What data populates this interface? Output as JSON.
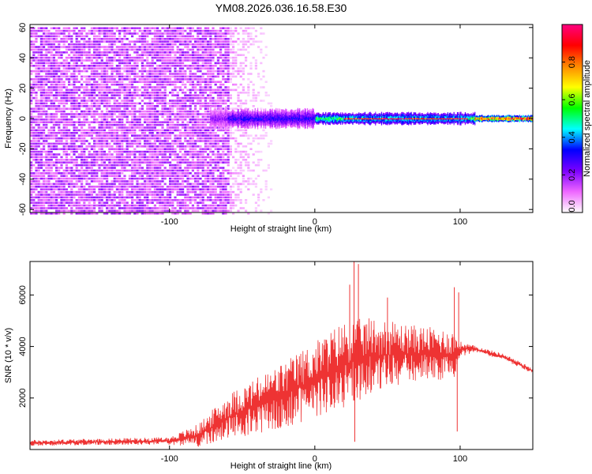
{
  "title": "YM08.2026.036.16.58.E30",
  "chart_data": [
    {
      "type": "heatmap",
      "xlabel": "Height of straight line (km)",
      "ylabel": "Frequency (Hz)",
      "xlim": [
        -196,
        150
      ],
      "ylim": [
        -62,
        62
      ],
      "xticks": [
        -100,
        0,
        100
      ],
      "yticks": [
        -60,
        -40,
        -20,
        0,
        20,
        40,
        60
      ],
      "colorbar": {
        "label": "Normalized spectral amplitude",
        "range": [
          0,
          1
        ],
        "ticks": [
          "0.0",
          "0.2",
          "0.4",
          "0.6",
          "0.8"
        ],
        "colors": [
          "#ffffff",
          "#ee66ff",
          "#7a00ff",
          "#0000ff",
          "#00ffff",
          "#00ff00",
          "#ffff00",
          "#ff8800",
          "#ff0000",
          "#ff0080"
        ]
      },
      "bands": [
        {
          "x": [
            -196,
            -60
          ],
          "freq_halfwidth": 62,
          "amplitude": 0.1,
          "desc": "broadband noise"
        },
        {
          "x": [
            -60,
            -30
          ],
          "freq_halfwidth": 62,
          "amplitude": 0.03
        },
        {
          "x": [
            -72,
            -60
          ],
          "freq_halfwidth": 6,
          "amplitude": 0.2
        },
        {
          "x": [
            -60,
            0
          ],
          "freq_halfwidth": 5,
          "amplitude": 0.3
        },
        {
          "x": [
            0,
            110
          ],
          "freq_halfwidth": 3,
          "amplitude": 0.55
        },
        {
          "x": [
            20,
            105
          ],
          "freq_halfwidth": 0.8,
          "amplitude": 0.95
        },
        {
          "x": [
            110,
            150
          ],
          "freq_halfwidth": 1.5,
          "amplitude": 0.95
        }
      ]
    },
    {
      "type": "line",
      "xlabel": "Height of straight line (km)",
      "ylabel": "SNR (10 * v/v)",
      "xlim": [
        -196,
        150
      ],
      "ylim": [
        0,
        7300
      ],
      "xticks": [
        -100,
        0,
        100
      ],
      "yticks": [
        2000,
        4000,
        6000
      ],
      "color": "#ee3333",
      "envelope": {
        "x": [
          -196,
          -150,
          -100,
          -80,
          -60,
          -40,
          -20,
          0,
          20,
          40,
          60,
          80,
          95,
          100,
          110,
          130,
          150
        ],
        "mean": [
          250,
          300,
          330,
          550,
          1250,
          1700,
          2150,
          2700,
          3300,
          3650,
          3700,
          3750,
          3650,
          3900,
          3900,
          3600,
          3050
        ],
        "noise": [
          120,
          120,
          150,
          450,
          900,
          1100,
          1300,
          1500,
          1700,
          1500,
          1200,
          1000,
          1000,
          300,
          130,
          120,
          120
        ]
      },
      "spikes": [
        {
          "x": 27,
          "y": 7300
        },
        {
          "x": 30,
          "y": 7200
        },
        {
          "x": 24,
          "y": 6400
        },
        {
          "x": 96,
          "y": 6300
        },
        {
          "x": 99,
          "y": 6100
        },
        {
          "x": 27.5,
          "y": 300
        },
        {
          "x": 98,
          "y": 700
        },
        {
          "x": 50,
          "y": 5900
        }
      ]
    }
  ]
}
